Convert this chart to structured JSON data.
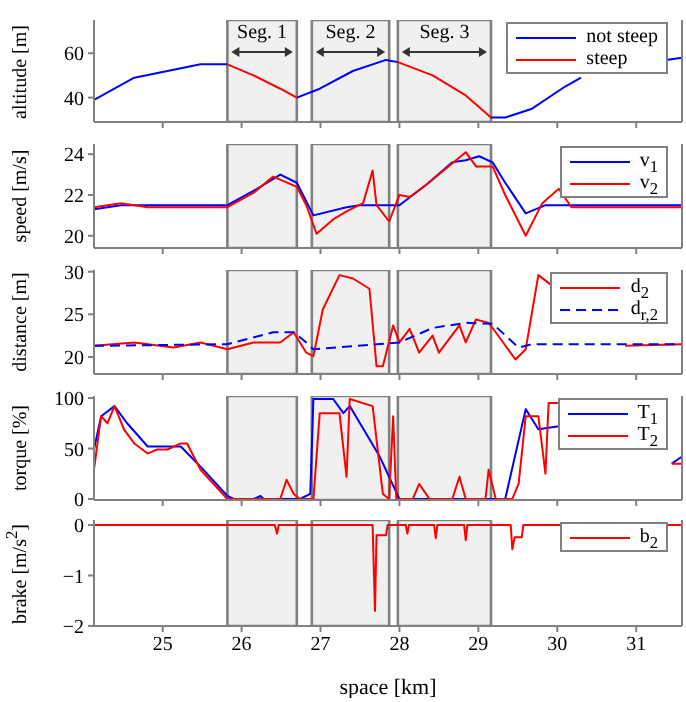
{
  "chart_data": [
    {
      "type": "line",
      "ylabel": "altitude [m]",
      "xlim": [
        24.13,
        31.58
      ],
      "xticks": [
        25,
        26,
        27,
        28,
        29,
        30,
        31
      ],
      "ylim": [
        29,
        75
      ],
      "yticks": [
        40,
        60
      ],
      "tick_labels": "y",
      "legend": "top right",
      "bands": [
        {
          "axis": "x",
          "from": 25.82,
          "to": 26.7,
          "label": "Seg. 1",
          "color": "#f0f0f0"
        },
        {
          "axis": "x",
          "from": 26.89,
          "to": 27.87,
          "label": "Seg. 2",
          "color": "#f0f0f0"
        },
        {
          "axis": "x",
          "from": 27.98,
          "to": 29.16,
          "label": "Seg. 3",
          "color": "#f0f0f0"
        }
      ],
      "series": [
        {
          "name": "not steep",
          "color": "#0000ff",
          "x": [
            24.13,
            24.64,
            25.06,
            25.48,
            25.82,
            26.2,
            26.7,
            26.99,
            27.41,
            27.83,
            27.98,
            28.5,
            29.16,
            29.34,
            29.68,
            30.1,
            30.3,
            30.8,
            31.38,
            31.58
          ],
          "values": [
            39,
            49,
            52,
            55,
            55,
            null,
            40,
            44,
            52,
            57,
            56,
            null,
            31,
            31,
            35,
            45,
            49,
            null,
            57,
            58
          ]
        },
        {
          "name": "steep",
          "color": "#ff0000",
          "x": [
            25.82,
            26.15,
            26.49,
            26.7,
            27.4,
            27.98,
            28.42,
            28.84,
            29.16
          ],
          "values": [
            55,
            50,
            44,
            40,
            null,
            56,
            50,
            41,
            31
          ]
        }
      ]
    },
    {
      "type": "line",
      "ylabel": "speed [m/s]",
      "xlim": [
        24.13,
        31.58
      ],
      "xticks": [
        25,
        26,
        27,
        28,
        29,
        30,
        31
      ],
      "ylim": [
        19.4,
        24.5
      ],
      "yticks": [
        20,
        22,
        24
      ],
      "tick_labels": "y",
      "legend": "top right",
      "bands": [
        {
          "axis": "x",
          "from": 25.82,
          "to": 26.7,
          "color": "#f0f0f0"
        },
        {
          "axis": "x",
          "from": 26.89,
          "to": 27.87,
          "color": "#f0f0f0"
        },
        {
          "axis": "x",
          "from": 27.98,
          "to": 29.16,
          "color": "#f0f0f0"
        }
      ],
      "series": [
        {
          "name": "v$_{1}$",
          "color": "#0000ff",
          "x": [
            24.13,
            24.47,
            25.48,
            25.82,
            26.15,
            26.49,
            26.7,
            26.91,
            27.33,
            27.5,
            28.0,
            28.34,
            28.67,
            28.84,
            29.01,
            29.18,
            29.34,
            29.6,
            29.85,
            31.58
          ],
          "values": [
            21.3,
            21.5,
            21.5,
            21.5,
            22.2,
            23.0,
            22.6,
            21.0,
            21.4,
            21.5,
            21.5,
            22.5,
            23.6,
            23.7,
            23.9,
            23.6,
            22.6,
            21.1,
            21.5,
            21.5
          ]
        },
        {
          "name": "v$_{2}$",
          "color": "#ff0000",
          "x": [
            24.13,
            24.47,
            24.81,
            25.14,
            25.48,
            25.82,
            26.15,
            26.4,
            26.7,
            26.82,
            26.95,
            27.16,
            27.33,
            27.54,
            27.66,
            27.71,
            27.87,
            28.0,
            28.13,
            28.34,
            28.59,
            28.84,
            28.97,
            29.18,
            29.34,
            29.6,
            29.81,
            30.02,
            30.18,
            30.52,
            31.58
          ],
          "values": [
            21.4,
            21.6,
            21.4,
            21.4,
            21.4,
            21.4,
            22.1,
            22.9,
            22.4,
            21.5,
            20.1,
            20.8,
            21.2,
            21.6,
            23.2,
            21.5,
            20.7,
            22.0,
            21.9,
            22.5,
            23.3,
            24.1,
            23.4,
            23.4,
            22.0,
            20.0,
            21.6,
            22.3,
            21.4,
            21.4,
            21.4
          ]
        }
      ]
    },
    {
      "type": "line",
      "ylabel": "distance [m]",
      "xlim": [
        24.13,
        31.58
      ],
      "xticks": [
        25,
        26,
        27,
        28,
        29,
        30,
        31
      ],
      "ylim": [
        18,
        30.2
      ],
      "yticks": [
        20,
        25,
        30
      ],
      "tick_labels": "y",
      "legend": "top right",
      "bands": [
        {
          "axis": "x",
          "from": 25.82,
          "to": 26.7,
          "color": "#f0f0f0"
        },
        {
          "axis": "x",
          "from": 26.89,
          "to": 27.87,
          "color": "#f0f0f0"
        },
        {
          "axis": "x",
          "from": 27.98,
          "to": 29.16,
          "color": "#f0f0f0"
        }
      ],
      "series": [
        {
          "name": "d$_{2}$",
          "color": "#ff0000",
          "x": [
            24.13,
            24.64,
            25.14,
            25.48,
            25.82,
            26.15,
            26.49,
            26.66,
            26.82,
            26.91,
            27.03,
            27.24,
            27.41,
            27.62,
            27.71,
            27.79,
            27.92,
            28.0,
            28.13,
            28.25,
            28.42,
            28.5,
            28.76,
            28.84,
            28.97,
            29.13,
            29.22,
            29.47,
            29.6,
            29.76,
            29.93,
            30.35,
            30.86,
            31.58
          ],
          "values": [
            21.3,
            21.7,
            21.1,
            21.7,
            20.9,
            21.7,
            21.7,
            22.9,
            20.5,
            20.1,
            25.6,
            29.6,
            29.2,
            28.0,
            18.9,
            18.9,
            23.7,
            21.7,
            23.3,
            20.5,
            22.5,
            20.5,
            23.7,
            21.7,
            24.4,
            24.0,
            22.9,
            19.7,
            20.9,
            29.6,
            28.4,
            null,
            21.3,
            21.5
          ]
        },
        {
          "name": "d$_{r,2}$",
          "color": "#0000ff",
          "line_style": "dashed",
          "x": [
            24.13,
            25.82,
            26.4,
            26.66,
            26.82,
            26.91,
            28.0,
            28.42,
            28.84,
            29.18,
            29.51,
            29.68,
            31.58
          ],
          "values": [
            21.3,
            21.5,
            22.9,
            22.9,
            21.7,
            20.9,
            21.7,
            23.4,
            24.0,
            23.9,
            21.1,
            21.5,
            21.5
          ]
        }
      ]
    },
    {
      "type": "line",
      "ylabel": "torque [%]",
      "xlim": [
        24.13,
        31.58
      ],
      "xticks": [
        25,
        26,
        27,
        28,
        29,
        30,
        31
      ],
      "ylim": [
        -1,
        102
      ],
      "yticks": [
        0,
        50,
        100
      ],
      "tick_labels": "y",
      "legend": "top right",
      "bands": [
        {
          "axis": "x",
          "from": 25.82,
          "to": 26.7,
          "color": "#f0f0f0"
        },
        {
          "axis": "x",
          "from": 26.89,
          "to": 27.87,
          "color": "#f0f0f0"
        },
        {
          "axis": "x",
          "from": 27.98,
          "to": 29.16,
          "color": "#f0f0f0"
        }
      ],
      "series": [
        {
          "name": "T$_{1}$",
          "color": "#0000ff",
          "x": [
            24.13,
            24.22,
            24.39,
            24.55,
            24.81,
            25.23,
            25.48,
            25.82,
            25.9,
            26.15,
            26.24,
            26.28,
            26.74,
            26.87,
            26.91,
            27.16,
            27.29,
            27.37,
            27.5,
            27.75,
            28.0,
            29.34,
            29.6,
            29.76,
            30.02,
            30.5,
            31.45,
            31.58
          ],
          "values": [
            49,
            82,
            92,
            75,
            52,
            52,
            32,
            3,
            0,
            0,
            3,
            0,
            0,
            5,
            99,
            99,
            85,
            92,
            75,
            42,
            0,
            0,
            89,
            69,
            72,
            null,
            35,
            42
          ]
        },
        {
          "name": "T$_{2}$",
          "color": "#ff0000",
          "x": [
            24.13,
            24.22,
            24.3,
            24.39,
            24.51,
            24.64,
            24.81,
            24.93,
            25.06,
            25.23,
            25.31,
            25.48,
            25.82,
            26.49,
            26.57,
            26.66,
            26.74,
            26.91,
            26.99,
            27.24,
            27.33,
            27.37,
            27.66,
            27.79,
            27.87,
            27.92,
            27.96,
            28.17,
            28.25,
            28.38,
            28.67,
            28.76,
            28.84,
            29.09,
            29.13,
            29.22,
            29.43,
            29.51,
            29.6,
            29.76,
            29.85,
            29.89,
            30.02,
            30.5,
            31.45,
            31.58
          ],
          "values": [
            29,
            82,
            75,
            92,
            69,
            55,
            45,
            49,
            49,
            55,
            55,
            29,
            0,
            0,
            19,
            5,
            0,
            0,
            85,
            85,
            22,
            99,
            92,
            5,
            0,
            82,
            0,
            0,
            15,
            0,
            0,
            22,
            0,
            0,
            29,
            0,
            0,
            15,
            82,
            82,
            25,
            95,
            95,
            null,
            35,
            35
          ]
        }
      ]
    },
    {
      "type": "line",
      "ylabel": "brake [m/s$^{2}$]",
      "xlabel": "space [km]",
      "xlim": [
        24.13,
        31.58
      ],
      "xticks": [
        25,
        26,
        27,
        28,
        29,
        30,
        31
      ],
      "ylim": [
        -2,
        0.1
      ],
      "yticks": [
        -2,
        -1,
        0
      ],
      "legend": "top right",
      "bands": [
        {
          "axis": "x",
          "from": 25.82,
          "to": 26.7,
          "color": "#f0f0f0"
        },
        {
          "axis": "x",
          "from": 26.89,
          "to": 27.87,
          "color": "#f0f0f0"
        },
        {
          "axis": "x",
          "from": 27.98,
          "to": 29.16,
          "color": "#f0f0f0"
        }
      ],
      "series": [
        {
          "name": "b$_{2}$",
          "color": "#ff0000",
          "x": [
            24.13,
            26.42,
            26.45,
            26.47,
            27.66,
            27.69,
            27.71,
            27.72,
            27.83,
            27.85,
            28.08,
            28.1,
            28.12,
            28.44,
            28.46,
            28.48,
            28.82,
            28.84,
            28.86,
            29.41,
            29.43,
            29.46,
            29.55,
            29.57,
            31.58
          ],
          "values": [
            0,
            0,
            -0.17,
            0,
            0,
            -1.7,
            -0.2,
            -0.2,
            -0.2,
            0,
            0,
            -0.17,
            0,
            0,
            -0.26,
            0,
            0,
            -0.3,
            0,
            0,
            -0.48,
            -0.24,
            -0.24,
            0,
            0
          ]
        }
      ]
    }
  ]
}
